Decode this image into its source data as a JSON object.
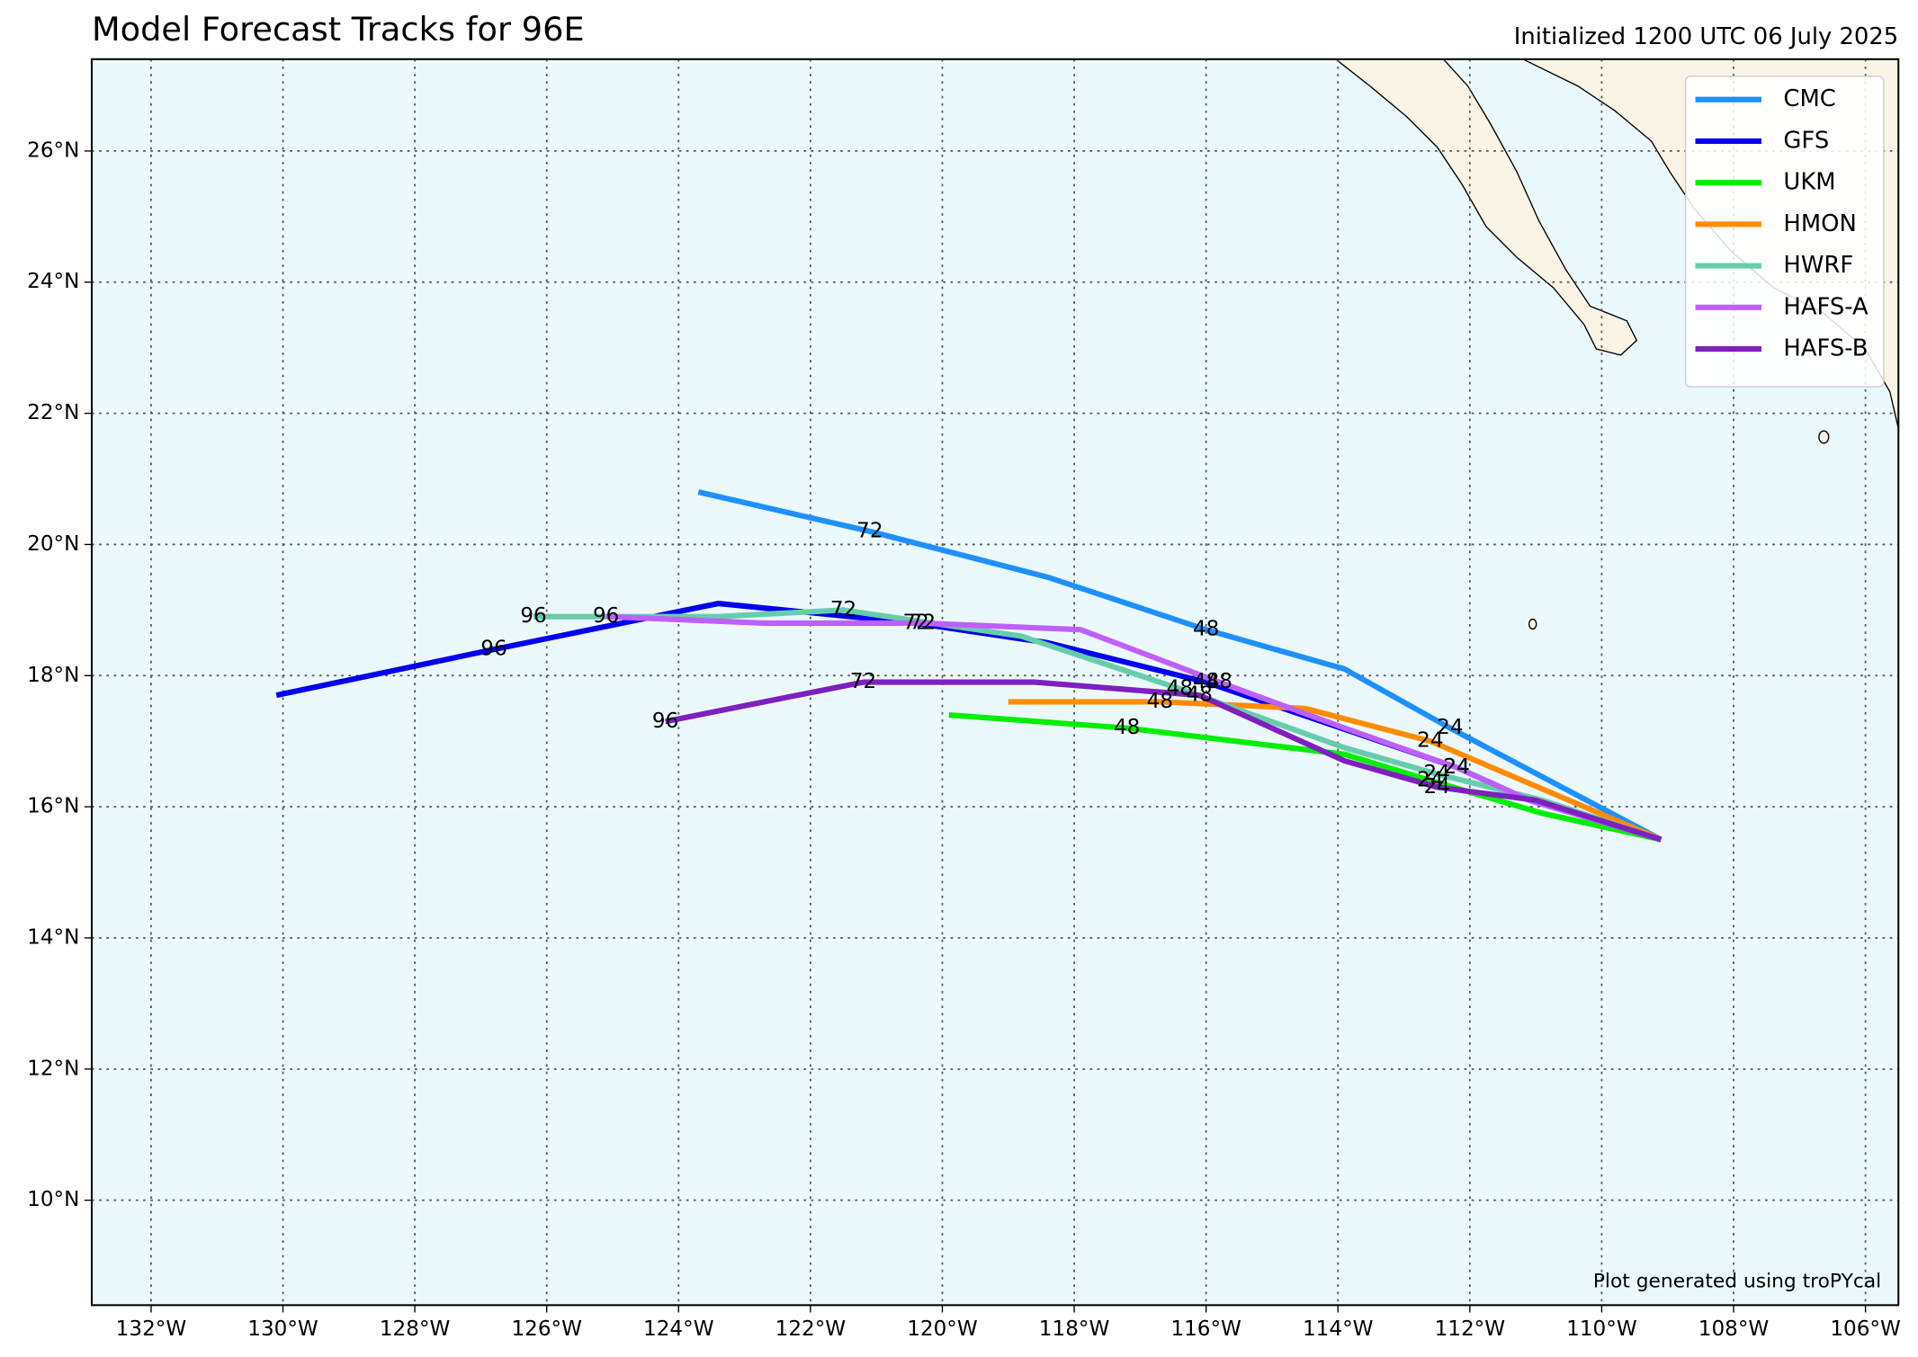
{
  "chart_data": {
    "type": "track-map",
    "title": "Model Forecast Tracks for 96E",
    "subtitle": "Initialized 1200 UTC 06 July 2025",
    "credit": "Plot generated using troPYcal",
    "xlim": [
      -132.9,
      -105.5
    ],
    "ylim": [
      8.4,
      27.4
    ],
    "xticks": [
      {
        "value": -132,
        "label": "132°W"
      },
      {
        "value": -130,
        "label": "130°W"
      },
      {
        "value": -128,
        "label": "128°W"
      },
      {
        "value": -126,
        "label": "126°W"
      },
      {
        "value": -124,
        "label": "124°W"
      },
      {
        "value": -122,
        "label": "122°W"
      },
      {
        "value": -120,
        "label": "120°W"
      },
      {
        "value": -118,
        "label": "118°W"
      },
      {
        "value": -116,
        "label": "116°W"
      },
      {
        "value": -114,
        "label": "114°W"
      },
      {
        "value": -112,
        "label": "112°W"
      },
      {
        "value": -110,
        "label": "110°W"
      },
      {
        "value": -108,
        "label": "108°W"
      },
      {
        "value": -106,
        "label": "106°W"
      }
    ],
    "yticks": [
      {
        "value": 10,
        "label": "10°N"
      },
      {
        "value": 12,
        "label": "12°N"
      },
      {
        "value": 14,
        "label": "14°N"
      },
      {
        "value": 16,
        "label": "16°N"
      },
      {
        "value": 18,
        "label": "18°N"
      },
      {
        "value": 20,
        "label": "20°N"
      },
      {
        "value": 22,
        "label": "22°N"
      },
      {
        "value": 24,
        "label": "24°N"
      },
      {
        "value": 26,
        "label": "26°N"
      }
    ],
    "grid": true,
    "legend": "upper right",
    "series": [
      {
        "name": "CMC",
        "color": "#1e90ff",
        "x": [
          -109.1,
          -112.3,
          -113.9,
          -116.0,
          -118.4,
          -121.1,
          -123.7
        ],
        "y": [
          15.5,
          17.2,
          18.1,
          18.7,
          19.5,
          20.2,
          20.8
        ],
        "hours": [
          null,
          24,
          null,
          48,
          null,
          72,
          null
        ]
      },
      {
        "name": "GFS",
        "color": "#0000ee",
        "x": [
          -109.1,
          -111.1,
          -112.2,
          -116.0,
          -118.4,
          -120.4,
          -123.4,
          -126.8,
          -130.1
        ],
        "y": [
          15.5,
          16.1,
          16.6,
          17.9,
          18.5,
          18.8,
          19.1,
          18.4,
          17.7
        ],
        "hours": [
          null,
          null,
          24,
          48,
          null,
          72,
          null,
          96,
          null
        ]
      },
      {
        "name": "UKM",
        "color": "#00ee00",
        "x": [
          -109.1,
          -110.9,
          -112.6,
          -113.9,
          -117.2,
          -119.9
        ],
        "y": [
          15.5,
          15.9,
          16.4,
          16.8,
          17.2,
          17.4
        ],
        "hours": [
          null,
          null,
          24,
          null,
          48,
          null
        ]
      },
      {
        "name": "HMON",
        "color": "#ff8c00",
        "x": [
          -109.1,
          -112.6,
          -114.5,
          -116.7,
          -119.0
        ],
        "y": [
          15.5,
          17.0,
          17.5,
          17.6,
          17.6
        ],
        "hours": [
          null,
          24,
          null,
          48,
          null
        ]
      },
      {
        "name": "HWRF",
        "color": "#66cdaa",
        "x": [
          -109.1,
          -110.9,
          -112.5,
          -113.9,
          -116.4,
          -118.8,
          -121.5,
          -123.4,
          -126.2
        ],
        "y": [
          15.5,
          16.1,
          16.5,
          16.9,
          17.8,
          18.6,
          19.0,
          18.9,
          18.9
        ],
        "hours": [
          null,
          null,
          24,
          null,
          48,
          null,
          72,
          null,
          96
        ]
      },
      {
        "name": "HAFS-A",
        "color": "#bf5fff",
        "x": [
          -109.1,
          -111.1,
          -112.2,
          -113.9,
          -115.8,
          -117.9,
          -120.3,
          -122.7,
          -125.1
        ],
        "y": [
          15.5,
          16.1,
          16.6,
          17.2,
          17.9,
          18.7,
          18.8,
          18.8,
          18.9
        ],
        "hours": [
          null,
          null,
          24,
          null,
          48,
          null,
          72,
          null,
          96
        ]
      },
      {
        "name": "HAFS-B",
        "color": "#7f1fbf",
        "x": [
          -109.1,
          -111.0,
          -112.5,
          -113.9,
          -116.1,
          -118.6,
          -121.2,
          -124.2
        ],
        "y": [
          15.5,
          16.1,
          16.3,
          16.7,
          17.7,
          17.9,
          17.9,
          17.3
        ],
        "hours": [
          null,
          null,
          24,
          null,
          48,
          null,
          72,
          96
        ]
      }
    ]
  }
}
